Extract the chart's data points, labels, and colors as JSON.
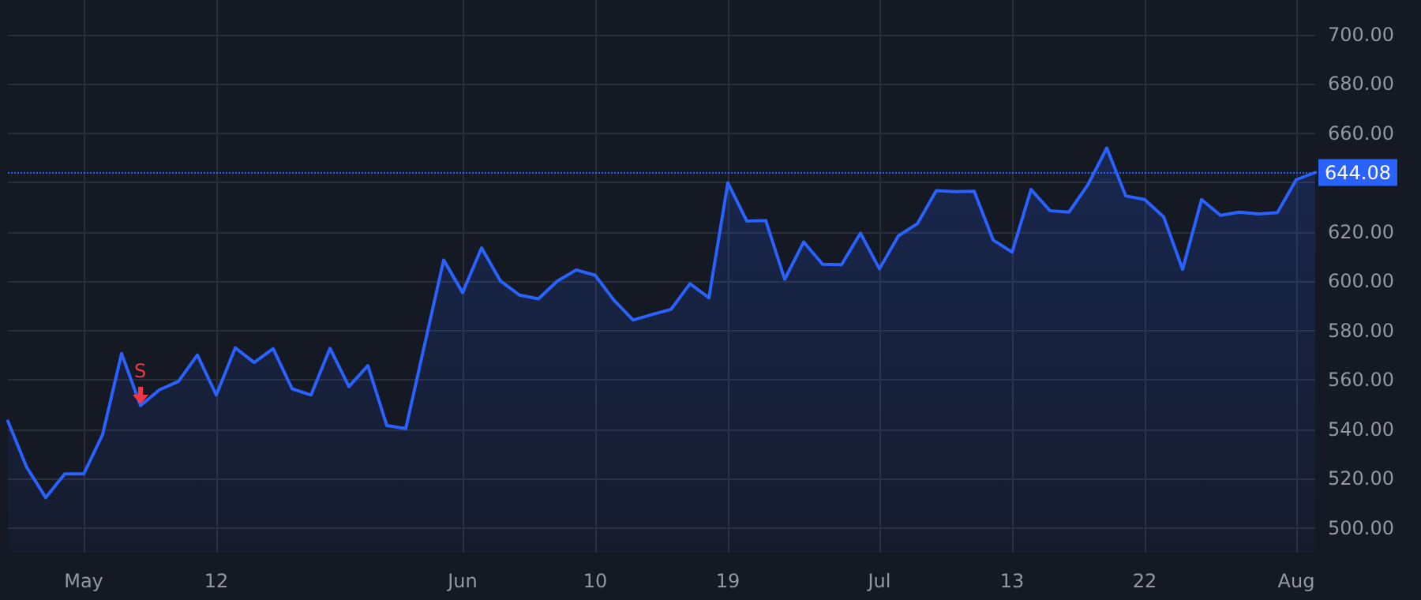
{
  "chart_data": {
    "type": "area",
    "categories": [
      null,
      null,
      null,
      null,
      "May",
      null,
      null,
      null,
      null,
      null,
      null,
      "12",
      null,
      null,
      null,
      null,
      null,
      null,
      null,
      null,
      null,
      null,
      null,
      null,
      "Jun",
      null,
      null,
      null,
      null,
      null,
      null,
      "10",
      null,
      null,
      null,
      null,
      null,
      null,
      "19",
      null,
      null,
      null,
      null,
      null,
      null,
      null,
      "Jul",
      null,
      null,
      null,
      null,
      null,
      null,
      "13",
      null,
      null,
      null,
      null,
      null,
      null,
      "22",
      null,
      null,
      null,
      null,
      null,
      null,
      null,
      "Aug",
      null
    ],
    "series": [
      {
        "color": "#2962ff",
        "values": [
          543.3,
          524.5,
          512.3,
          521.9,
          521.9,
          537.9,
          570.7,
          549.6,
          556.0,
          559.4,
          570.1,
          553.9,
          573.0,
          567.1,
          572.7,
          556.4,
          553.9,
          572.8,
          557.3,
          565.8,
          541.5,
          540.3,
          574.5,
          608.6,
          595.4,
          613.5,
          600.1,
          594.4,
          592.9,
          600.1,
          604.6,
          602.4,
          592.2,
          584.3,
          586.5,
          588.6,
          599.0,
          593.3,
          639.9,
          624.4,
          624.6,
          600.8,
          615.9,
          606.9,
          606.7,
          619.5,
          605.0,
          618.4,
          623.3,
          636.7,
          636.3,
          636.5,
          616.7,
          611.8,
          637.2,
          628.6,
          628.0,
          639.1,
          654.0,
          634.6,
          633.1,
          626.1,
          604.8,
          633.1,
          626.7,
          628.0,
          627.3,
          627.8,
          641.2,
          644.08
        ]
      }
    ],
    "ylim": [
      490,
      714
    ],
    "yticks": [
      {
        "value": 500,
        "label": "500.00"
      },
      {
        "value": 520,
        "label": "520.00"
      },
      {
        "value": 540,
        "label": "540.00"
      },
      {
        "value": 560,
        "label": "560.00"
      },
      {
        "value": 580,
        "label": "580.00"
      },
      {
        "value": 600,
        "label": "600.00"
      },
      {
        "value": 620,
        "label": "620.00"
      },
      {
        "value": 640,
        "label": null
      },
      {
        "value": 660,
        "label": "660.00"
      },
      {
        "value": 680,
        "label": "680.00"
      },
      {
        "value": 700,
        "label": "700.00"
      }
    ],
    "ref_lines": [
      {
        "axis": "y",
        "value": 644.08,
        "label": "644.08",
        "color": "#2962ff",
        "line_style": "dotted"
      }
    ],
    "annotations": [
      {
        "text": "S",
        "y": 549.6
      }
    ],
    "grid": true,
    "marker": "none",
    "line_style": "solid"
  }
}
